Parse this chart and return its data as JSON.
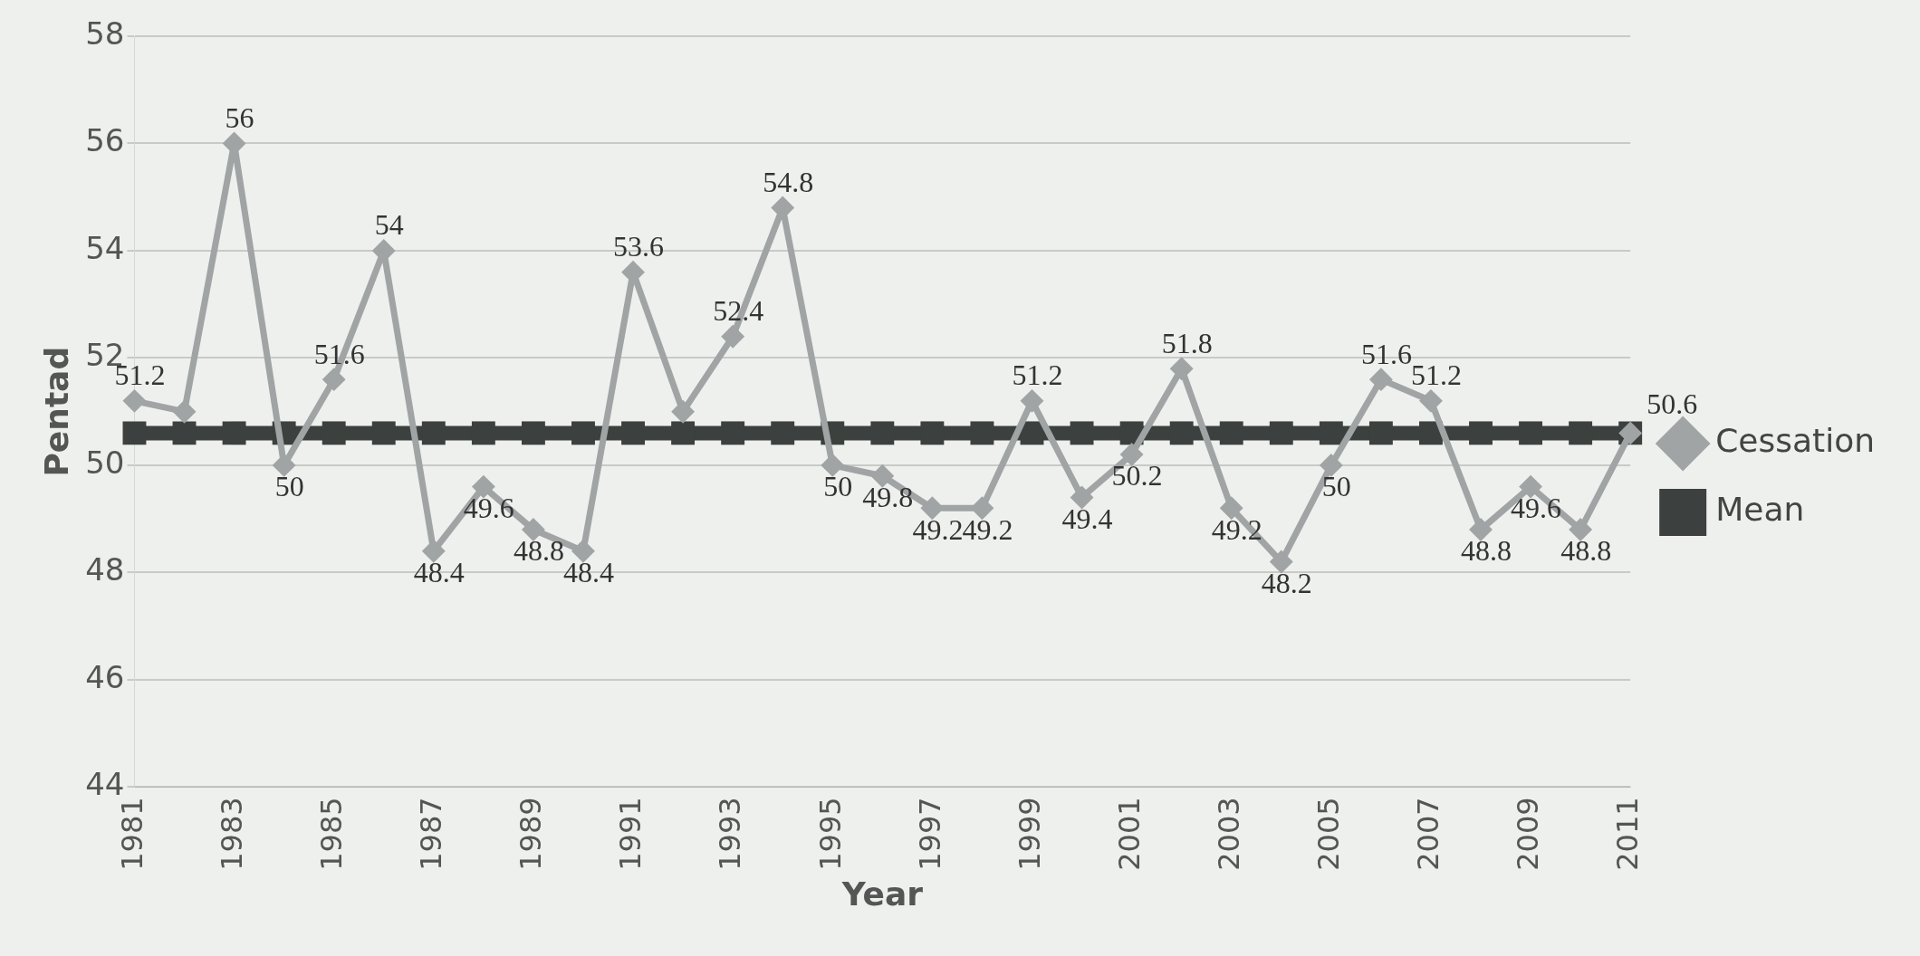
{
  "chart_data": {
    "type": "line",
    "xlabel": "Year",
    "ylabel": "Pentad",
    "categories": [
      "1981",
      null,
      "1983",
      null,
      "1985",
      null,
      "1987",
      null,
      "1989",
      null,
      "1991",
      null,
      "1993",
      null,
      "1995",
      null,
      "1997",
      null,
      "1999",
      null,
      "2001",
      null,
      "2003",
      null,
      "2005",
      null,
      "2007",
      null,
      "2009",
      null,
      "2011"
    ],
    "series": [
      {
        "name": "Cessation",
        "color": "#a0a4a4",
        "marker": "diamond",
        "values": [
          51.2,
          51,
          56,
          50,
          51.6,
          54,
          48.4,
          49.6,
          48.8,
          48.4,
          53.6,
          51,
          52.4,
          54.8,
          50,
          49.8,
          49.2,
          49.2,
          51.2,
          49.4,
          50.2,
          51.8,
          49.2,
          48.2,
          50,
          51.6,
          51.2,
          48.8,
          49.6,
          48.8,
          50.6
        ],
        "value_labels": [
          "51.2",
          null,
          "56",
          "50",
          "51.6",
          "54",
          "48.4",
          "49.6",
          "48.8",
          "48.4",
          "53.6",
          null,
          "52.4",
          "54.8",
          "50",
          "49.8",
          "49.2",
          "49.2",
          "51.2",
          "49.4",
          "50.2",
          "51.8",
          "49.2",
          "48.2",
          "50",
          "51.6",
          "51.2",
          "48.8",
          "49.6",
          "48.8",
          "50.6"
        ]
      },
      {
        "name": "Mean",
        "color": "#3c403e",
        "marker": "square",
        "values": [
          50.6,
          50.6,
          50.6,
          50.6,
          50.6,
          50.6,
          50.6,
          50.6,
          50.6,
          50.6,
          50.6,
          50.6,
          50.6,
          50.6,
          50.6,
          50.6,
          50.6,
          50.6,
          50.6,
          50.6,
          50.6,
          50.6,
          50.6,
          50.6,
          50.6,
          50.6,
          50.6,
          50.6,
          50.6,
          50.6,
          50.6
        ]
      }
    ],
    "ylim": [
      44,
      58
    ],
    "yticks": [
      44,
      46,
      48,
      50,
      52,
      54,
      56,
      58
    ],
    "grid": "y",
    "legend": "right"
  }
}
